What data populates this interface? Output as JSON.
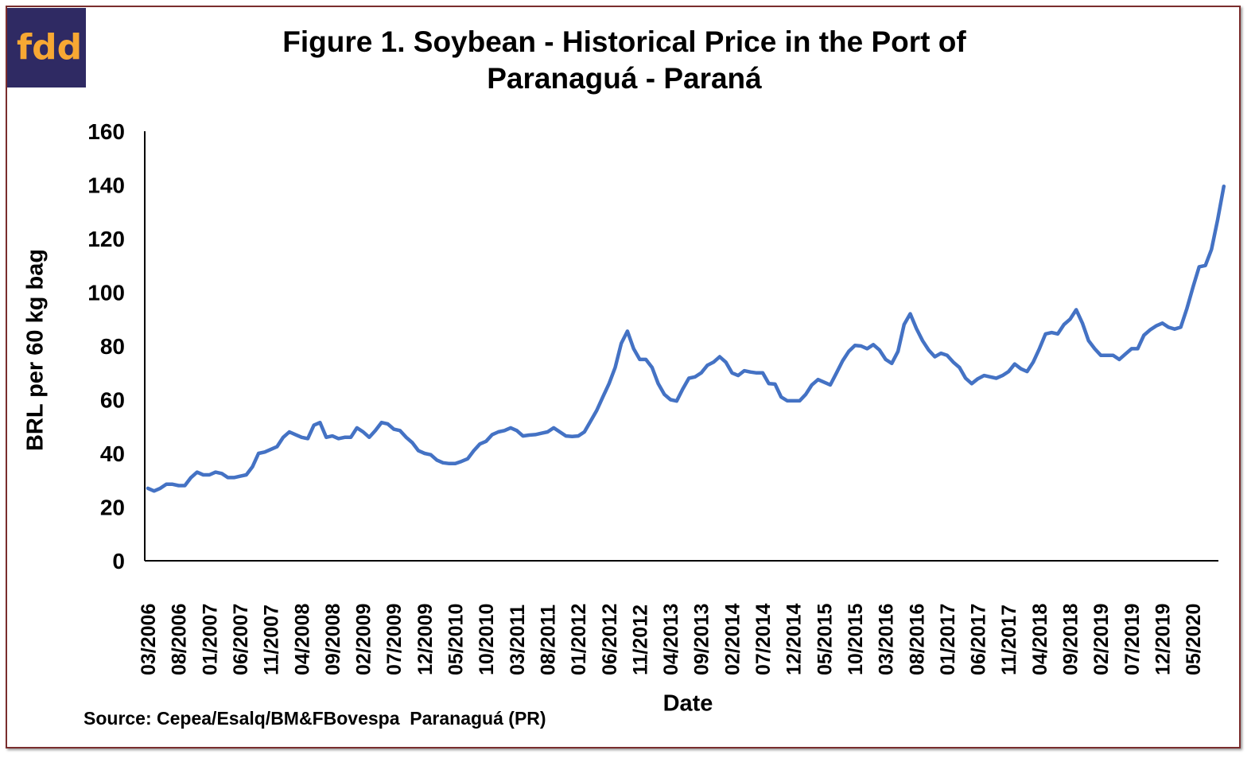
{
  "logo": {
    "text": "fdd",
    "background": "#2f2a63",
    "color": "#f7a833"
  },
  "chart_data": {
    "type": "line",
    "title": "Figure 1. Soybean - Historical Price in the Port of Paranaguá - Paraná",
    "title_lines": [
      "Figure 1. Soybean - Historical Price in the Port of",
      "Paranaguá - Paraná"
    ],
    "xlabel": "Date",
    "ylabel": "BRL per 60 kg bag",
    "source": "Source: Cepea/Esalq/BM&FBovespa  Paranaguá (PR)",
    "ylim": [
      0,
      160
    ],
    "yticks": [
      0,
      20,
      40,
      60,
      80,
      100,
      120,
      140,
      160
    ],
    "xticks": [
      "03/2006",
      "08/2006",
      "01/2007",
      "06/2007",
      "11/2007",
      "04/2008",
      "09/2008",
      "02/2009",
      "07/2009",
      "12/2009",
      "05/2010",
      "10/2010",
      "03/2011",
      "08/2011",
      "01/2012",
      "06/2012",
      "11/2012",
      "04/2013",
      "09/2013",
      "02/2014",
      "07/2014",
      "12/2014",
      "05/2015",
      "10/2015",
      "03/2016",
      "08/2016",
      "01/2017",
      "06/2017",
      "11/2017",
      "04/2018",
      "09/2018",
      "02/2019",
      "07/2019",
      "12/2019",
      "05/2020"
    ],
    "grid": false,
    "legend": "none",
    "line_color": "#4472c4",
    "x": [
      "03/2006",
      "04/2006",
      "05/2006",
      "06/2006",
      "07/2006",
      "08/2006",
      "09/2006",
      "10/2006",
      "11/2006",
      "12/2006",
      "01/2007",
      "02/2007",
      "03/2007",
      "04/2007",
      "05/2007",
      "06/2007",
      "07/2007",
      "08/2007",
      "09/2007",
      "10/2007",
      "11/2007",
      "12/2007",
      "01/2008",
      "02/2008",
      "03/2008",
      "04/2008",
      "05/2008",
      "06/2008",
      "07/2008",
      "08/2008",
      "09/2008",
      "10/2008",
      "11/2008",
      "12/2008",
      "01/2009",
      "02/2009",
      "03/2009",
      "04/2009",
      "05/2009",
      "06/2009",
      "07/2009",
      "08/2009",
      "09/2009",
      "10/2009",
      "11/2009",
      "12/2009",
      "01/2010",
      "02/2010",
      "03/2010",
      "04/2010",
      "05/2010",
      "06/2010",
      "07/2010",
      "08/2010",
      "09/2010",
      "10/2010",
      "11/2010",
      "12/2010",
      "01/2011",
      "02/2011",
      "03/2011",
      "04/2011",
      "05/2011",
      "06/2011",
      "07/2011",
      "08/2011",
      "09/2011",
      "10/2011",
      "11/2011",
      "12/2011",
      "01/2012",
      "02/2012",
      "03/2012",
      "04/2012",
      "05/2012",
      "06/2012",
      "07/2012",
      "08/2012",
      "09/2012",
      "10/2012",
      "11/2012",
      "12/2012",
      "01/2013",
      "02/2013",
      "03/2013",
      "04/2013",
      "05/2013",
      "06/2013",
      "07/2013",
      "08/2013",
      "09/2013",
      "10/2013",
      "11/2013",
      "12/2013",
      "01/2014",
      "02/2014",
      "03/2014",
      "04/2014",
      "05/2014",
      "06/2014",
      "07/2014",
      "08/2014",
      "09/2014",
      "10/2014",
      "11/2014",
      "12/2014",
      "01/2015",
      "02/2015",
      "03/2015",
      "04/2015",
      "05/2015",
      "06/2015",
      "07/2015",
      "08/2015",
      "09/2015",
      "10/2015",
      "11/2015",
      "12/2015",
      "01/2016",
      "02/2016",
      "03/2016",
      "04/2016",
      "05/2016",
      "06/2016",
      "07/2016",
      "08/2016",
      "09/2016",
      "10/2016",
      "11/2016",
      "12/2016",
      "01/2017",
      "02/2017",
      "03/2017",
      "04/2017",
      "05/2017",
      "06/2017",
      "07/2017",
      "08/2017",
      "09/2017",
      "10/2017",
      "11/2017",
      "12/2017",
      "01/2018",
      "02/2018",
      "03/2018",
      "04/2018",
      "05/2018",
      "06/2018",
      "07/2018",
      "08/2018",
      "09/2018",
      "10/2018",
      "11/2018",
      "12/2018",
      "01/2019",
      "02/2019",
      "03/2019",
      "04/2019",
      "05/2019",
      "06/2019",
      "07/2019",
      "08/2019",
      "09/2019",
      "10/2019",
      "11/2019",
      "12/2019",
      "01/2020",
      "02/2020",
      "03/2020",
      "04/2020",
      "05/2020",
      "06/2020",
      "07/2020",
      "08/2020",
      "09/2020",
      "10/2020"
    ],
    "values": [
      27,
      26,
      27,
      28.5,
      28.5,
      28,
      28,
      31,
      33,
      32,
      32,
      33,
      32.5,
      31,
      31,
      31.5,
      32,
      35,
      40,
      40.5,
      41.5,
      42.5,
      46,
      48,
      47,
      46,
      45.5,
      50.5,
      51.5,
      46,
      46.5,
      45.5,
      46,
      46,
      49.5,
      48,
      46,
      48.5,
      51.5,
      51,
      49,
      48.5,
      46,
      44,
      41,
      40,
      39.5,
      37.5,
      36.5,
      36.2,
      36.2,
      37,
      38,
      41,
      43.5,
      44.5,
      47,
      48,
      48.5,
      49.5,
      48.5,
      46.5,
      46.8,
      47,
      47.5,
      48,
      49.5,
      48,
      46.5,
      46.3,
      46.5,
      48,
      52,
      56,
      61,
      66,
      72,
      81,
      85.5,
      79,
      75,
      75,
      72,
      66,
      62,
      60,
      59.5,
      64,
      68,
      68.5,
      70,
      72.8,
      74,
      76,
      74,
      70,
      69,
      70.8,
      70.3,
      70,
      70,
      66,
      65.8,
      61,
      59.6,
      59.6,
      59.6,
      62,
      65.5,
      67.5,
      66.5,
      65.5,
      70,
      74.5,
      78,
      80.2,
      80,
      79,
      80.5,
      78.5,
      75,
      73.5,
      78,
      88,
      92,
      86.5,
      82,
      78.5,
      76,
      77.3,
      76.5,
      74,
      72,
      68,
      66,
      67.8,
      69,
      68.5,
      68,
      69,
      70.5,
      73.3,
      71.5,
      70.5,
      74,
      79,
      84.5,
      85,
      84.5,
      88,
      90,
      93.5,
      88.5,
      82,
      79,
      76.5,
      76.5,
      76.5,
      75,
      77,
      79,
      79,
      84,
      86,
      87.5,
      88.5,
      87,
      86.3,
      87,
      94,
      102,
      109.5,
      110,
      116,
      127,
      139.5
    ]
  }
}
